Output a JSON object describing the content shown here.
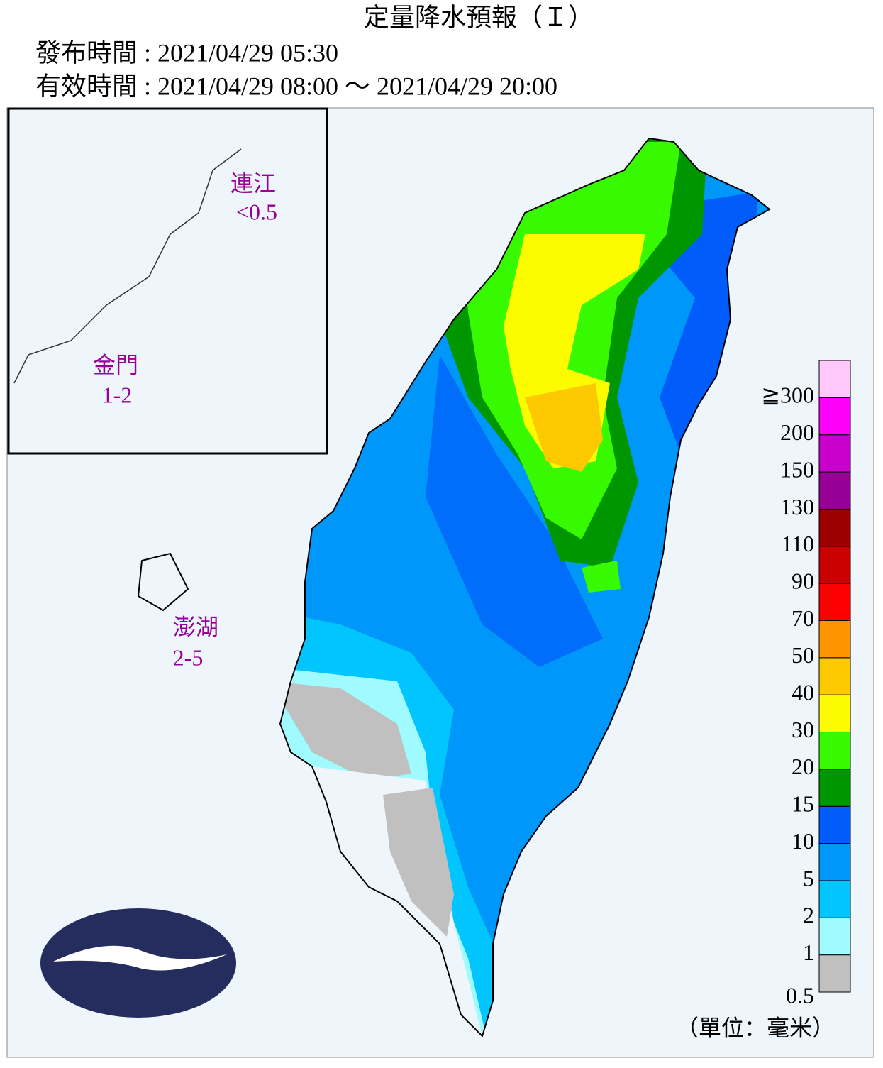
{
  "header": {
    "title": "定量降水預報（Ｉ）",
    "issue": "發布時間 : 2021/04/29 05:30",
    "valid": "有效時間 : 2021/04/29 08:00 ～ 2021/04/29 20:00"
  },
  "islands": [
    {
      "name": "連江",
      "value": "<0.5"
    },
    {
      "name": "金門",
      "value": "1-2"
    },
    {
      "name": "澎湖",
      "value": "2-5"
    }
  ],
  "legend": {
    "colors": [
      "#c0c0c0",
      "#9ffbff",
      "#00c5ff",
      "#0097fb",
      "#005cfb",
      "#009600",
      "#37fa00",
      "#fcfb00",
      "#fec900",
      "#fe9500",
      "#fd0000",
      "#cb0000",
      "#9d0000",
      "#960096",
      "#c900cb",
      "#fc00fa",
      "#ffc8fa"
    ],
    "labels": [
      0.5,
      1,
      2,
      5,
      10,
      15,
      20,
      30,
      40,
      50,
      70,
      90,
      110,
      130,
      150,
      200,
      "≧300"
    ]
  },
  "unit": "（單位：毫米）"
}
